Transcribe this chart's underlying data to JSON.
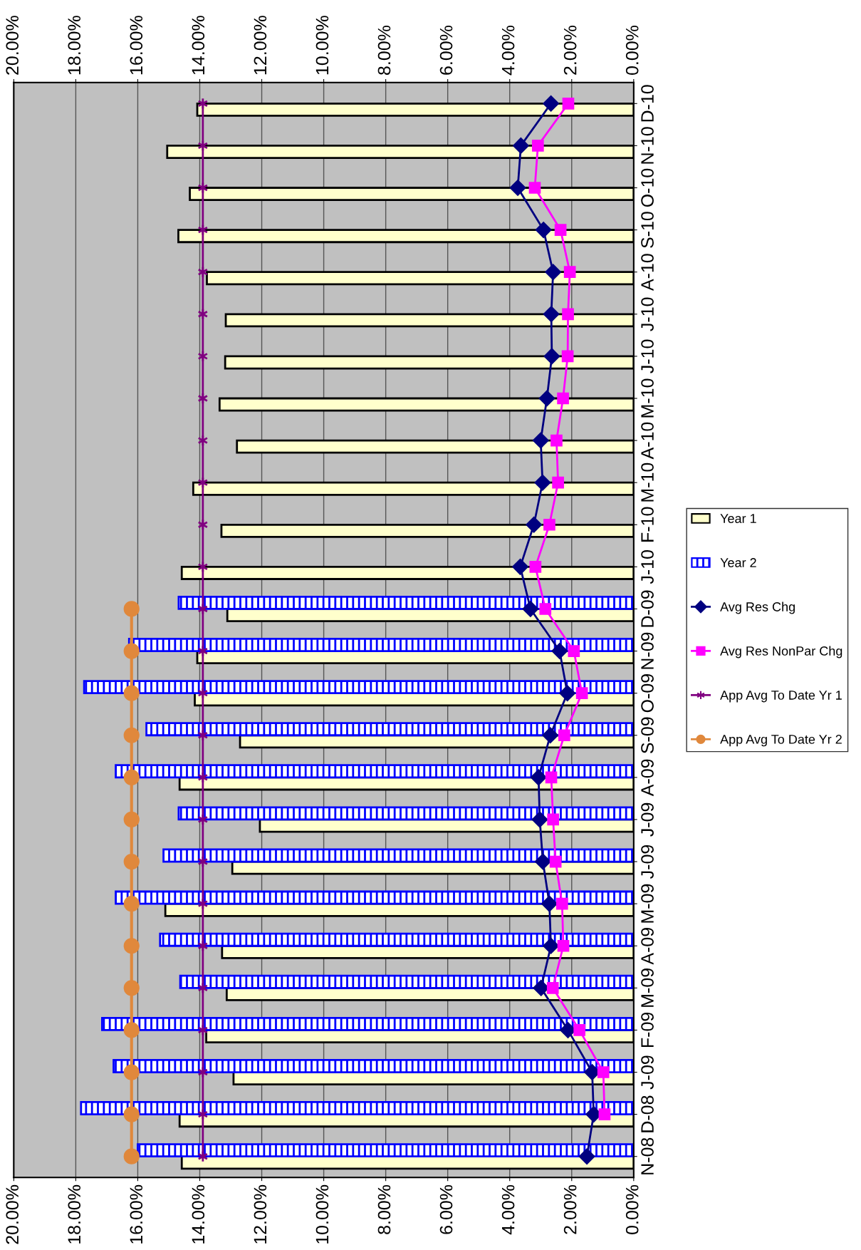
{
  "chart_data": {
    "type": "bar",
    "orientation": "horizontal",
    "categories": [
      "D-10",
      "N-10",
      "O-10",
      "S-10",
      "A-10",
      "J-10",
      "J-10",
      "M-10",
      "A-10",
      "M-10",
      "F-10",
      "J-10",
      "D-09",
      "N-09",
      "O-09",
      "S-09",
      "A-09",
      "J-09",
      "J-09",
      "M-09",
      "A-09",
      "M-09",
      "F-09",
      "J-09",
      "D-08",
      "N-08"
    ],
    "series": [
      {
        "name": "Year 1",
        "color": "#ffffcc",
        "values": [
          14.08,
          15.05,
          14.32,
          14.69,
          13.77,
          13.16,
          13.18,
          13.36,
          12.8,
          14.21,
          13.3,
          14.58,
          13.11,
          14.08,
          14.16,
          12.7,
          14.65,
          12.06,
          12.95,
          15.11,
          13.28,
          13.13,
          13.79,
          12.91,
          14.65,
          14.58
        ]
      },
      {
        "name": "Year 2",
        "color": "#0000ff",
        "values": [
          null,
          null,
          null,
          null,
          null,
          null,
          null,
          null,
          null,
          null,
          null,
          null,
          14.68,
          16.28,
          17.73,
          15.72,
          16.71,
          14.68,
          15.17,
          16.71,
          15.28,
          14.63,
          17.15,
          16.78,
          17.83,
          16.0
        ]
      },
      {
        "name": "Avg Res Chg",
        "type": "line",
        "color": "#000080",
        "marker": "diamond",
        "values": [
          2.67,
          3.64,
          3.74,
          2.91,
          2.6,
          2.66,
          2.64,
          2.8,
          3.0,
          2.94,
          3.22,
          3.66,
          3.33,
          2.39,
          2.14,
          2.69,
          3.07,
          3.03,
          2.93,
          2.72,
          2.67,
          2.99,
          2.12,
          1.34,
          1.29,
          1.51
        ]
      },
      {
        "name": "Avg Res NonPar Chg",
        "type": "line",
        "color": "#ff00ff",
        "marker": "square",
        "values": [
          2.11,
          3.09,
          3.19,
          2.36,
          2.06,
          2.12,
          2.13,
          2.28,
          2.49,
          2.44,
          2.72,
          3.17,
          2.85,
          1.93,
          1.67,
          2.24,
          2.66,
          2.6,
          2.52,
          2.31,
          2.27,
          2.61,
          1.75,
          0.98,
          0.94,
          null
        ]
      },
      {
        "name": "App Avg To Date Yr 1",
        "type": "line",
        "color": "#800080",
        "marker": "cross",
        "values": [
          13.9,
          13.9,
          13.9,
          13.9,
          13.9,
          13.9,
          13.9,
          13.9,
          13.9,
          13.9,
          13.9,
          13.9,
          13.9,
          13.9,
          13.9,
          13.9,
          13.9,
          13.9,
          13.9,
          13.9,
          13.9,
          13.9,
          13.9,
          13.9,
          13.9,
          13.9
        ]
      },
      {
        "name": "App Avg To Date Yr 2",
        "type": "line",
        "color": "#e0883c",
        "marker": "circle",
        "values": [
          null,
          null,
          null,
          null,
          null,
          null,
          null,
          null,
          null,
          null,
          null,
          null,
          16.2,
          16.2,
          16.2,
          16.2,
          16.2,
          16.2,
          16.2,
          16.2,
          16.2,
          16.2,
          16.2,
          16.2,
          16.2,
          16.2
        ]
      }
    ],
    "xlim": [
      20,
      0
    ],
    "xticks": [
      {
        "value": 0,
        "label": "0.00%"
      },
      {
        "value": 2,
        "label": "2.00%"
      },
      {
        "value": 4,
        "label": "4.00%"
      },
      {
        "value": 6,
        "label": "6.00%"
      },
      {
        "value": 8,
        "label": "8.00%"
      },
      {
        "value": 10,
        "label": "10.00%"
      },
      {
        "value": 12,
        "label": "12.00%"
      },
      {
        "value": 14,
        "label": "14.00%"
      },
      {
        "value": 16,
        "label": "16.00%"
      },
      {
        "value": 18,
        "label": "18.00%"
      },
      {
        "value": 20,
        "label": "20.00%"
      }
    ],
    "x2lim": [
      20,
      0
    ],
    "x2ticks": [
      {
        "value": 0,
        "label": "0.00%"
      },
      {
        "value": 2,
        "label": "2.00%"
      },
      {
        "value": 4,
        "label": "4.00%"
      },
      {
        "value": 6,
        "label": "6.00%"
      },
      {
        "value": 8,
        "label": "8.00%"
      },
      {
        "value": 10,
        "label": "10.00%"
      },
      {
        "value": 12,
        "label": "12.00%"
      },
      {
        "value": 14,
        "label": "14.00%"
      },
      {
        "value": 16,
        "label": "16.00%"
      },
      {
        "value": 18,
        "label": "18.00%"
      },
      {
        "value": 20,
        "label": "20.00%"
      }
    ],
    "grid": "x",
    "legend": "right"
  }
}
